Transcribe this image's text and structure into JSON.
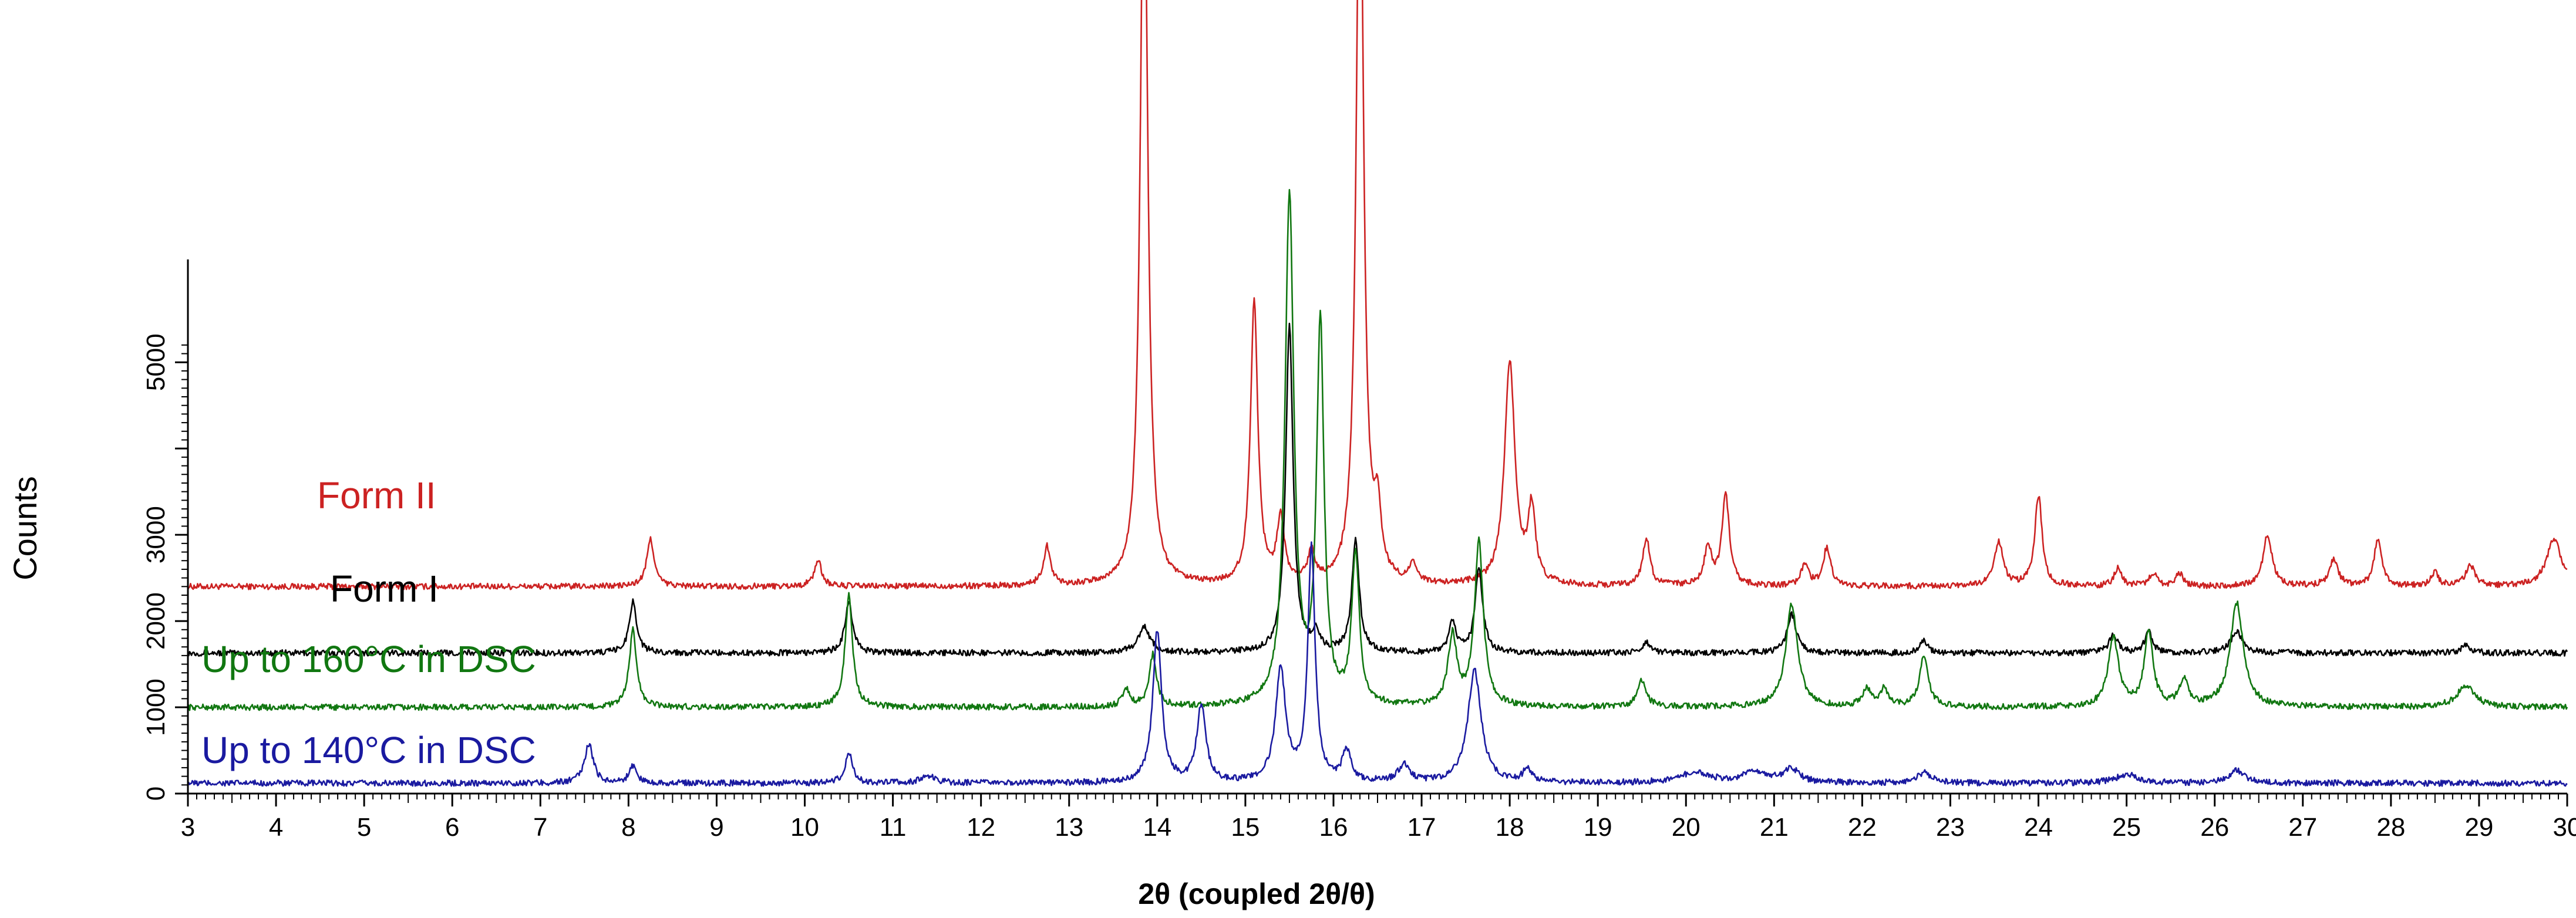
{
  "chart_data": {
    "type": "line",
    "title": "",
    "xlabel": "2θ (coupled 2θ/θ)",
    "ylabel": "Counts",
    "xlim": [
      3,
      30
    ],
    "ylim": [
      0,
      9200
    ],
    "grid": false,
    "legend": "inline labels at left of each trace",
    "x_ticks": [
      "3",
      "4",
      "5",
      "6",
      "7",
      "8",
      "9",
      "10",
      "11",
      "12",
      "13",
      "14",
      "15",
      "16",
      "17",
      "18",
      "19",
      "20",
      "21",
      "22",
      "23",
      "24",
      "25",
      "26",
      "27",
      "28",
      "29",
      "30"
    ],
    "y_ticks": [
      "0",
      "1000",
      "2000",
      "3000",
      "5000"
    ],
    "y_tick_values": [
      0,
      1000,
      2000,
      3000,
      5000
    ],
    "series": [
      {
        "name": "Form II",
        "color": "#cc2222",
        "baseline": 2400,
        "peaks": [
          [
            8.25,
            550,
            0.05
          ],
          [
            10.15,
            300,
            0.05
          ],
          [
            12.75,
            450,
            0.05
          ],
          [
            13.85,
            9000,
            0.05
          ],
          [
            15.1,
            3300,
            0.05
          ],
          [
            15.4,
            750,
            0.05
          ],
          [
            15.75,
            350,
            0.05
          ],
          [
            16.3,
            9000,
            0.05
          ],
          [
            16.5,
            700,
            0.05
          ],
          [
            16.9,
            200,
            0.05
          ],
          [
            18.0,
            2600,
            0.07
          ],
          [
            18.25,
            850,
            0.05
          ],
          [
            19.55,
            550,
            0.05
          ],
          [
            20.25,
            450,
            0.05
          ],
          [
            20.45,
            1050,
            0.05
          ],
          [
            21.35,
            250,
            0.05
          ],
          [
            21.6,
            450,
            0.05
          ],
          [
            23.55,
            500,
            0.06
          ],
          [
            24.0,
            1050,
            0.05
          ],
          [
            24.9,
            200,
            0.05
          ],
          [
            25.3,
            150,
            0.05
          ],
          [
            25.6,
            150,
            0.05
          ],
          [
            26.6,
            600,
            0.06
          ],
          [
            27.35,
            300,
            0.06
          ],
          [
            27.85,
            550,
            0.05
          ],
          [
            28.5,
            150,
            0.05
          ],
          [
            28.9,
            250,
            0.06
          ],
          [
            29.85,
            550,
            0.1
          ]
        ]
      },
      {
        "name": "Form I",
        "color": "#000000",
        "baseline": 1630,
        "peaks": [
          [
            8.05,
            600,
            0.05
          ],
          [
            10.5,
            600,
            0.05
          ],
          [
            13.85,
            300,
            0.08
          ],
          [
            15.5,
            3800,
            0.05
          ],
          [
            15.8,
            200,
            0.05
          ],
          [
            16.25,
            1300,
            0.05
          ],
          [
            17.35,
            350,
            0.05
          ],
          [
            17.65,
            1000,
            0.05
          ],
          [
            19.55,
            120,
            0.05
          ],
          [
            21.2,
            450,
            0.06
          ],
          [
            22.7,
            150,
            0.05
          ],
          [
            24.85,
            200,
            0.06
          ],
          [
            25.25,
            250,
            0.05
          ],
          [
            26.25,
            250,
            0.08
          ],
          [
            28.85,
            100,
            0.06
          ]
        ]
      },
      {
        "name": "Up to 160°C in DSC",
        "color": "#117711",
        "baseline": 1000,
        "peaks": [
          [
            8.05,
            900,
            0.05
          ],
          [
            10.5,
            1300,
            0.05
          ],
          [
            13.65,
            200,
            0.05
          ],
          [
            13.95,
            600,
            0.05
          ],
          [
            15.5,
            5900,
            0.06
          ],
          [
            15.85,
            4400,
            0.05
          ],
          [
            16.25,
            1750,
            0.05
          ],
          [
            17.35,
            800,
            0.06
          ],
          [
            17.65,
            1900,
            0.06
          ],
          [
            19.5,
            300,
            0.06
          ],
          [
            21.2,
            1200,
            0.08
          ],
          [
            22.05,
            200,
            0.06
          ],
          [
            22.25,
            200,
            0.06
          ],
          [
            22.7,
            600,
            0.06
          ],
          [
            24.85,
            800,
            0.07
          ],
          [
            25.25,
            850,
            0.06
          ],
          [
            25.65,
            300,
            0.06
          ],
          [
            26.25,
            1200,
            0.09
          ],
          [
            28.85,
            250,
            0.12
          ]
        ]
      },
      {
        "name": "Up to 140°C in DSC",
        "color": "#1a1aa0",
        "baseline": 120,
        "peaks": [
          [
            7.55,
            450,
            0.06
          ],
          [
            8.05,
            200,
            0.05
          ],
          [
            10.5,
            350,
            0.05
          ],
          [
            11.4,
            80,
            0.1
          ],
          [
            14.0,
            1750,
            0.06
          ],
          [
            14.5,
            900,
            0.06
          ],
          [
            15.4,
            1300,
            0.07
          ],
          [
            15.75,
            2700,
            0.05
          ],
          [
            16.15,
            350,
            0.06
          ],
          [
            16.8,
            200,
            0.08
          ],
          [
            17.6,
            1300,
            0.09
          ],
          [
            18.2,
            150,
            0.06
          ],
          [
            20.1,
            120,
            0.2
          ],
          [
            20.8,
            120,
            0.2
          ],
          [
            21.2,
            150,
            0.1
          ],
          [
            22.7,
            120,
            0.1
          ],
          [
            25.0,
            100,
            0.15
          ],
          [
            26.25,
            150,
            0.1
          ]
        ]
      }
    ]
  }
}
